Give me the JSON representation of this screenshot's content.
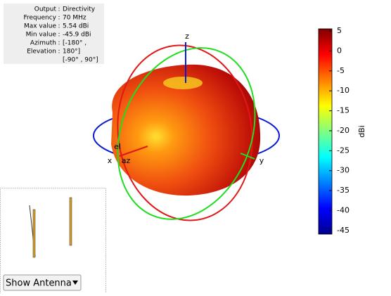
{
  "info": {
    "rows": [
      {
        "label": "Output",
        "value": "Directivity"
      },
      {
        "label": "Frequency",
        "value": "70 MHz"
      },
      {
        "label": "Max value",
        "value": "5.54 dBi"
      },
      {
        "label": "Min value",
        "value": "-45.9 dBi"
      },
      {
        "label": "Azimuth",
        "value": "[-180° ,"
      },
      {
        "label": "Elevation",
        "value": "180°]"
      },
      {
        "value": "[-90° , 90°]"
      }
    ]
  },
  "axes": {
    "z": "z",
    "x": "x",
    "y": "y",
    "az": "az",
    "el": "el"
  },
  "colorbar": {
    "label": "dBi",
    "lim": [
      -45.9,
      5.54
    ],
    "ticks": [
      5,
      0,
      -5,
      -10,
      -15,
      -20,
      -25,
      -30,
      -35,
      -40,
      -45
    ]
  },
  "control": {
    "label": "Show Antenna"
  }
}
